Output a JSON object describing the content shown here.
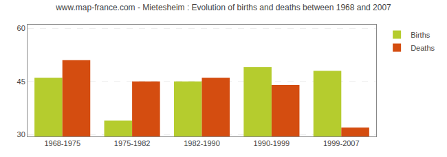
{
  "chart_data": {
    "type": "bar",
    "title": "www.map-france.com - Mietesheim : Evolution of births and deaths between 1968 and 2007",
    "categories": [
      "1968-1975",
      "1975-1982",
      "1982-1990",
      "1990-1999",
      "1999-2007"
    ],
    "series": [
      {
        "name": "Births",
        "color": "#b5cc2e",
        "values": [
          46,
          34,
          45,
          49,
          48
        ]
      },
      {
        "name": "Deaths",
        "color": "#d44d10",
        "values": [
          51,
          45,
          46,
          44,
          32
        ]
      }
    ],
    "ylim": [
      29.5,
      61
    ],
    "yticks": [
      30,
      45,
      60
    ],
    "grid": true,
    "legend": "upper right"
  }
}
